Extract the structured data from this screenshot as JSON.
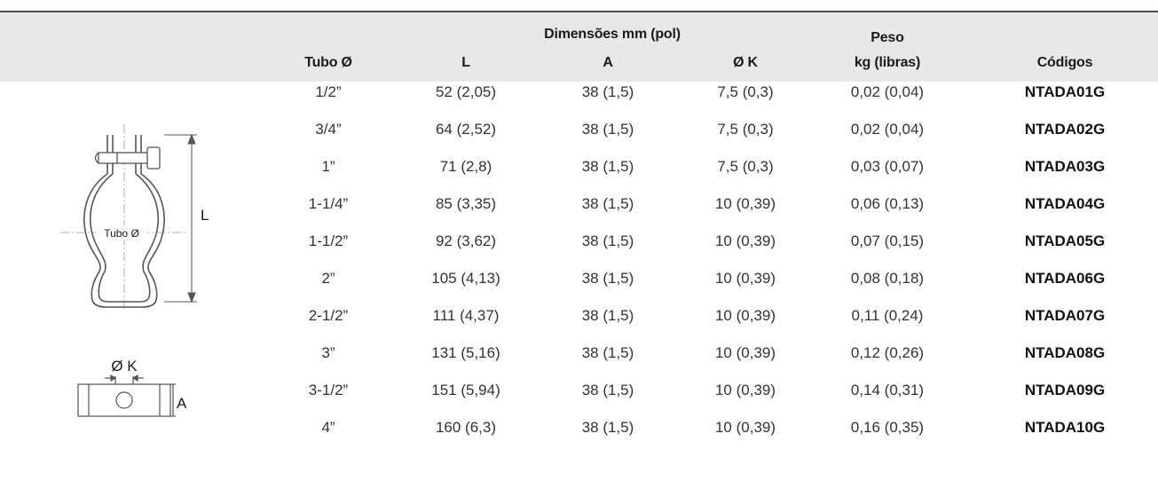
{
  "header": {
    "group_dims": "Dimensões mm (pol)",
    "col_tubo": "Tubo Ø",
    "col_l": "L",
    "col_a": "A",
    "col_k": "Ø K",
    "col_peso_1": "Peso",
    "col_peso_2": "kg (libras)",
    "col_codigos": "Códigos"
  },
  "rows": [
    {
      "tubo": "1/2”",
      "l": "52 (2,05)",
      "a": "38 (1,5)",
      "k": "7,5 (0,3)",
      "peso": "0,02 (0,04)",
      "code": "NTADA01G"
    },
    {
      "tubo": "3/4”",
      "l": "64 (2,52)",
      "a": "38 (1,5)",
      "k": "7,5 (0,3)",
      "peso": "0,02 (0,04)",
      "code": "NTADA02G"
    },
    {
      "tubo": "1”",
      "l": "71 (2,8)",
      "a": "38 (1,5)",
      "k": "7,5 (0,3)",
      "peso": "0,03 (0,07)",
      "code": "NTADA03G"
    },
    {
      "tubo": "1-1/4”",
      "l": "85 (3,35)",
      "a": "38 (1,5)",
      "k": "10 (0,39)",
      "peso": "0,06 (0,13)",
      "code": "NTADA04G"
    },
    {
      "tubo": "1-1/2”",
      "l": "92 (3,62)",
      "a": "38 (1,5)",
      "k": "10 (0,39)",
      "peso": "0,07 (0,15)",
      "code": "NTADA05G"
    },
    {
      "tubo": "2”",
      "l": "105 (4,13)",
      "a": "38 (1,5)",
      "k": "10 (0,39)",
      "peso": "0,08 (0,18)",
      "code": "NTADA06G"
    },
    {
      "tubo": "2-1/2”",
      "l": "111 (4,37)",
      "a": "38 (1,5)",
      "k": "10 (0,39)",
      "peso": "0,11 (0,24)",
      "code": "NTADA07G"
    },
    {
      "tubo": "3”",
      "l": "131 (5,16)",
      "a": "38 (1,5)",
      "k": "10 (0,39)",
      "peso": "0,12 (0,26)",
      "code": "NTADA08G"
    },
    {
      "tubo": "3-1/2”",
      "l": "151 (5,94)",
      "a": "38 (1,5)",
      "k": "10 (0,39)",
      "peso": "0,14 (0,31)",
      "code": "NTADA09G"
    },
    {
      "tubo": "4”",
      "l": "160 (6,3)",
      "a": "38 (1,5)",
      "k": "10 (0,39)",
      "peso": "0,16 (0,35)",
      "code": "NTADA10G"
    }
  ],
  "diagram": {
    "tubo_label": "Tubo Ø",
    "l_label": "L",
    "k_label": "Ø K",
    "a_label": "A"
  }
}
